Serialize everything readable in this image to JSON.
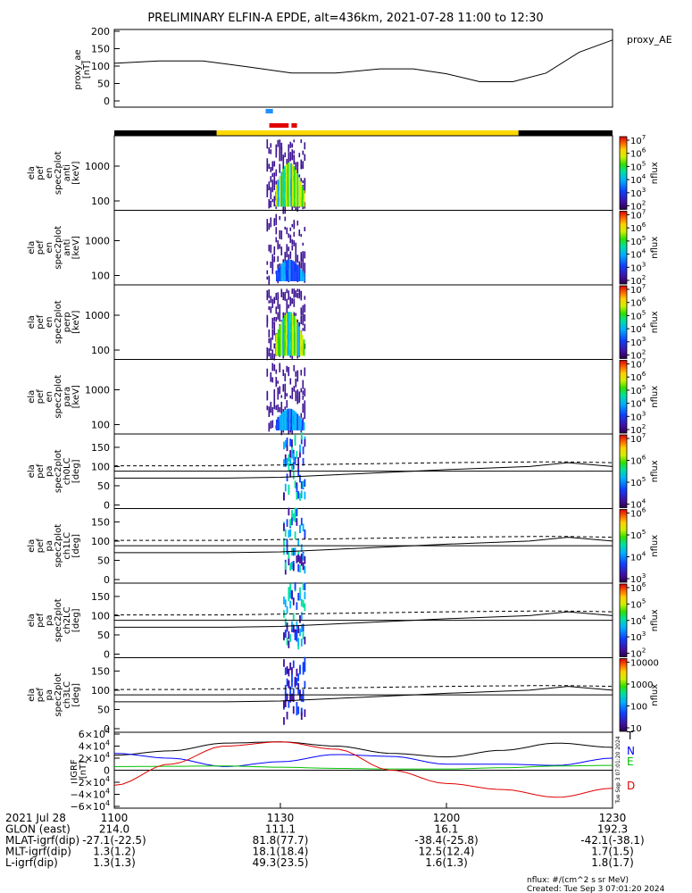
{
  "title": "PRELIMINARY ELFIN-A EPDE, alt=436km, 2021-07-28 11:00 to 12:30",
  "chart_data": [
    {
      "id": "proxy_ae",
      "type": "line",
      "ylabel": [
        "proxy_ae",
        "[nT]"
      ],
      "legend": "proxy_AE",
      "yticks": [
        "200",
        "150",
        "100",
        "50",
        "0"
      ],
      "ylim": [
        0,
        200
      ],
      "x_minutes": [
        0,
        8,
        16,
        24,
        32,
        40,
        48,
        54,
        60,
        66,
        72,
        78,
        84,
        90
      ],
      "values": [
        108,
        115,
        115,
        98,
        80,
        80,
        92,
        92,
        78,
        55,
        55,
        80,
        140,
        175
      ]
    },
    {
      "id": "status_bars",
      "blue_bar_minutes": [
        27.5,
        28.5
      ],
      "red_bar_minutes": [
        28,
        33
      ],
      "black_bar_minutes": [
        [
          0,
          18.5
        ],
        [
          73,
          90
        ]
      ],
      "yellow_bar_minutes": [
        18.5,
        73
      ]
    },
    {
      "id": "energy_panels",
      "type": "heatmap",
      "yticks": [
        "1000",
        "100"
      ],
      "colorbar_label": "nflux",
      "colorbar_ticks": [
        "10^7",
        "10^6",
        "10^5",
        "10^4",
        "10^3",
        "10^2"
      ],
      "panels": [
        {
          "ylabel": [
            "ela",
            "pef",
            "en",
            "spec2plot",
            "anti",
            "[keV]"
          ]
        },
        {
          "ylabel": [
            "ela",
            "pef",
            "en",
            "spec2plot",
            "anti",
            "[keV]"
          ]
        },
        {
          "ylabel": [
            "ela",
            "pef",
            "en",
            "spec2plot",
            "perp",
            "[keV]"
          ]
        },
        {
          "ylabel": [
            "ela",
            "pef",
            "en",
            "spec2plot",
            "para",
            "[keV]"
          ]
        }
      ]
    },
    {
      "id": "pitch_panels",
      "type": "heatmap",
      "yticks": [
        "150",
        "100",
        "50",
        "0"
      ],
      "colorbar_label": "nflux",
      "panels": [
        {
          "ylabel": [
            "ela",
            "pef",
            "pa",
            "spec2plot",
            "ch0LC",
            "[deg]"
          ],
          "cb": [
            "10^7",
            "10^6",
            "10^5",
            "10^4"
          ]
        },
        {
          "ylabel": [
            "ela",
            "pef",
            "pa",
            "spec2plot",
            "ch1LC",
            "[deg]"
          ],
          "cb": [
            "10^6",
            "10^5",
            "10^4",
            "10^3"
          ]
        },
        {
          "ylabel": [
            "ela",
            "pef",
            "pa",
            "spec2plot",
            "ch2LC",
            "[deg]"
          ],
          "cb": [
            "10^6",
            "10^5",
            "10^4",
            "10^3",
            "10^2"
          ]
        },
        {
          "ylabel": [
            "ela",
            "pef",
            "pa",
            "spec2plot",
            "ch3LC",
            "[deg]"
          ],
          "cb": [
            "10000",
            "1000",
            "100",
            "10"
          ]
        }
      ],
      "dashed_line_deg": [
        102,
        102,
        104,
        107,
        110,
        112,
        112,
        110
      ],
      "solid_line_deg": [
        70,
        70,
        72,
        82,
        92,
        100,
        110,
        100
      ],
      "line_minutes": [
        0,
        20,
        30,
        45,
        60,
        75,
        82,
        90
      ]
    },
    {
      "id": "igrf",
      "type": "line",
      "ylabel": [
        "IGRF",
        "[nT]"
      ],
      "yticks": [
        "6×10^4",
        "4×10^4",
        "2×10^4",
        "0",
        "−2×10^4",
        "−4×10^4",
        "−6×10^4"
      ],
      "ylim": [
        -60000,
        60000
      ],
      "x_minutes": [
        0,
        10,
        20,
        30,
        40,
        50,
        60,
        70,
        80,
        90
      ],
      "series": [
        {
          "name": "T",
          "color": "#000000",
          "values": [
            25000,
            32000,
            45000,
            47000,
            40000,
            28000,
            22000,
            33000,
            45000,
            38000
          ]
        },
        {
          "name": "N",
          "color": "#0000ff",
          "values": [
            28000,
            20000,
            6000,
            14000,
            26000,
            23000,
            10000,
            10000,
            8000,
            20000
          ]
        },
        {
          "name": "E",
          "color": "#00c000",
          "values": [
            6000,
            6500,
            7000,
            5000,
            3000,
            2000,
            2000,
            4000,
            7000,
            8000
          ]
        },
        {
          "name": "D",
          "color": "#e00000",
          "values": [
            -25000,
            10000,
            40000,
            47000,
            35000,
            0,
            -22000,
            -32000,
            -45000,
            -30000
          ]
        }
      ],
      "side_label": "Tue Sep  3 07:01:20 2024"
    }
  ],
  "x_axis": {
    "ticks": [
      "1100",
      "1130",
      "1200",
      "1230"
    ],
    "rows": [
      {
        "label": "2021 Jul 28",
        "values": [
          "",
          "",
          "",
          ""
        ]
      },
      {
        "label": "GLON (east)",
        "values": [
          "214.0",
          "111.1",
          "16.1",
          "192.3"
        ]
      },
      {
        "label": "MLAT-igrf(dip)",
        "values": [
          "-27.1(-22.5)",
          "81.8(77.7)",
          "-38.4(-25.8)",
          "-42.1(-38.1)"
        ]
      },
      {
        "label": "MLT-igrf(dip)",
        "values": [
          "1.3(1.2)",
          "18.1(18.4)",
          "12.5(12.4)",
          "1.7(1.5)"
        ]
      },
      {
        "label": "L-igrf(dip)",
        "values": [
          "1.3(1.3)",
          "49.3(23.5)",
          "1.6(1.3)",
          "1.8(1.7)"
        ]
      }
    ]
  },
  "footer": {
    "units": "nflux: #/(cm^2 s sr MeV)",
    "created": "Created: Tue Sep  3 07:01:20 2024"
  }
}
